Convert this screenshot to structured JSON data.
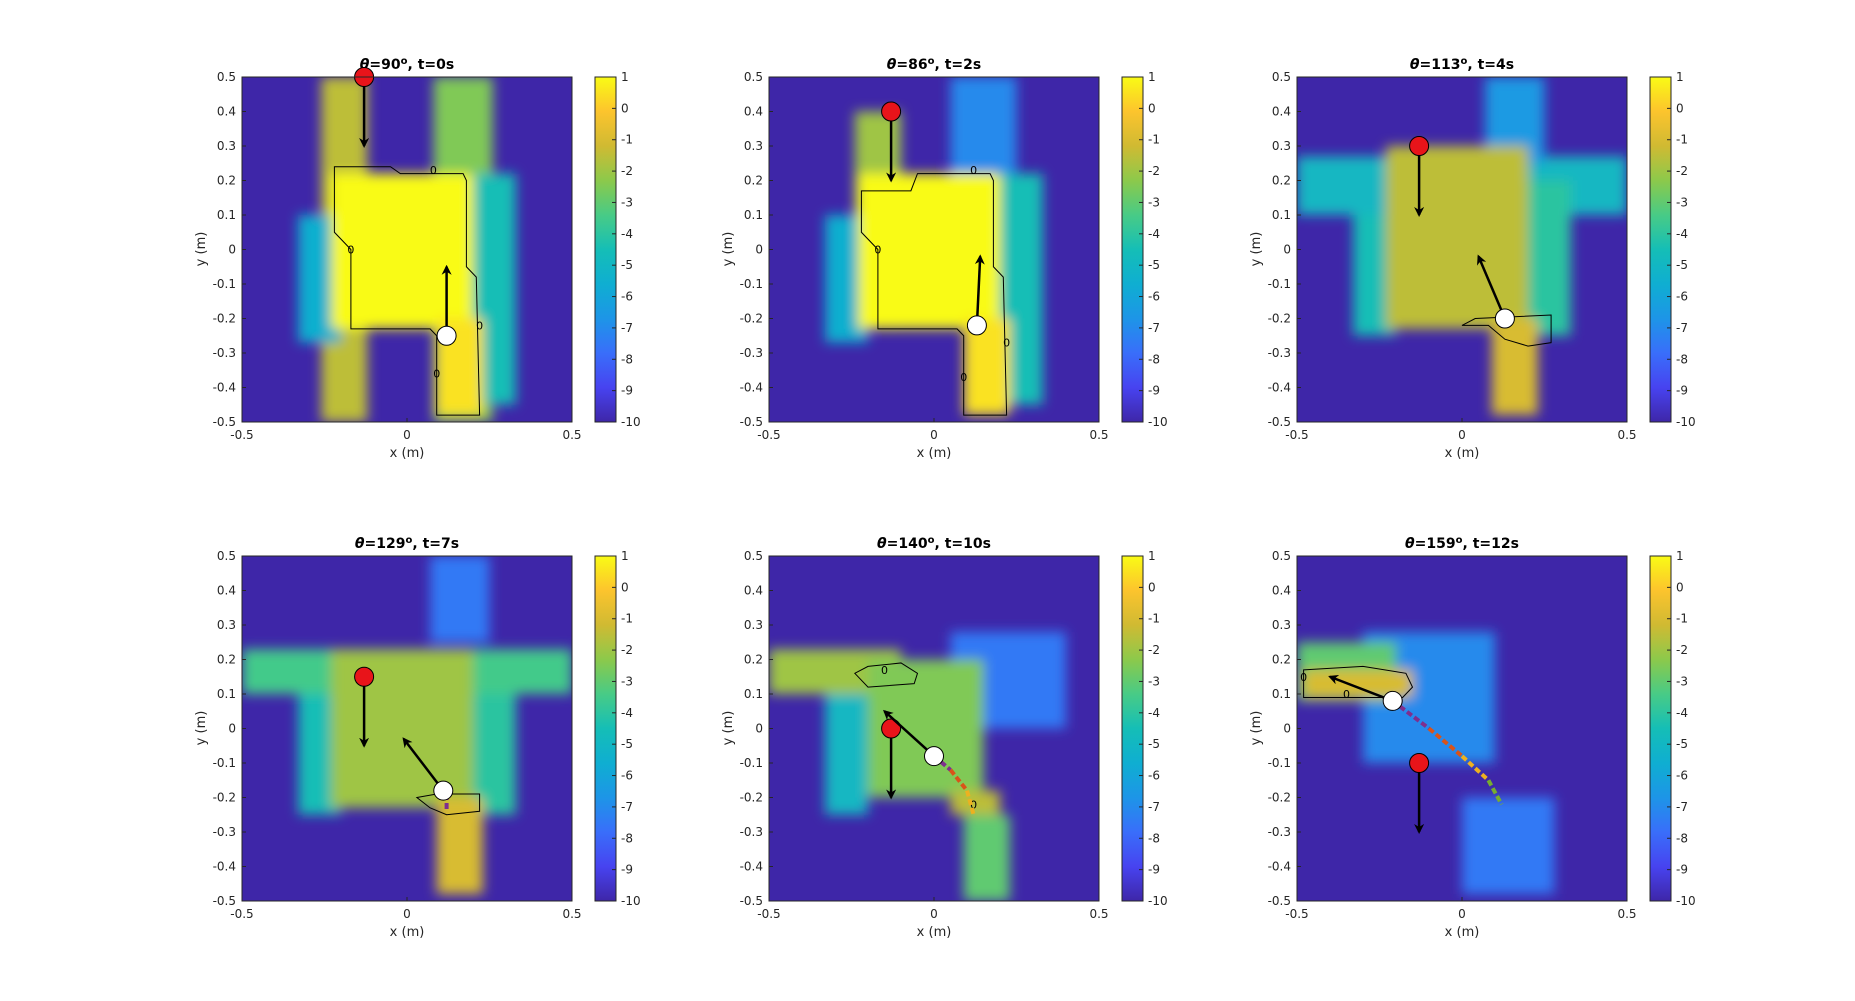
{
  "chart_data": [
    {
      "type": "heatmap",
      "title_parts": {
        "symbol": "θ",
        "value": "=90",
        "degree": "o",
        "suffix": ", t=0s"
      },
      "xlabel": "x (m)",
      "ylabel": "y (m)",
      "xlim": [
        -0.5,
        0.5
      ],
      "ylim": [
        -0.5,
        0.5
      ],
      "xticks": [
        "-0.5",
        "0",
        "0.5"
      ],
      "yticks": [
        "-0.5",
        "-0.4",
        "-0.3",
        "-0.2",
        "-0.1",
        "0",
        "0.1",
        "0.2",
        "0.3",
        "0.4",
        "0.5"
      ],
      "colorbar": {
        "range": [
          -10,
          1
        ],
        "ticks": [
          "1",
          "0",
          "-1",
          "-2",
          "-3",
          "-4",
          "-5",
          "-6",
          "-7",
          "-8",
          "-9",
          "-10"
        ]
      },
      "red_marker": {
        "x": -0.13,
        "y": 0.5,
        "arrow_to": [
          -0.13,
          0.3
        ]
      },
      "white_marker": {
        "x": 0.12,
        "y": -0.25,
        "arrow_to": [
          0.12,
          -0.05
        ]
      },
      "regions": [
        {
          "label": "left corridor",
          "x": [
            -0.26,
            -0.12
          ],
          "y": [
            -0.5,
            0.5
          ],
          "value": -1.5
        },
        {
          "label": "right corridor",
          "x": [
            0.08,
            0.26
          ],
          "y": [
            -0.5,
            0.5
          ],
          "value": -2.5
        },
        {
          "label": "left wing",
          "x": [
            -0.33,
            -0.2
          ],
          "y": [
            -0.27,
            0.1
          ],
          "value": -5.5
        },
        {
          "label": "right wing",
          "x": [
            0.2,
            0.33
          ],
          "y": [
            -0.45,
            0.22
          ],
          "value": -4.5
        },
        {
          "label": "core",
          "x": [
            -0.23,
            0.2
          ],
          "y": [
            -0.23,
            0.22
          ],
          "value": 1
        },
        {
          "label": "lower core",
          "x": [
            0.09,
            0.23
          ],
          "y": [
            -0.48,
            -0.2
          ],
          "value": 0.5
        }
      ],
      "contour_polygon": [
        [
          -0.22,
          0.24
        ],
        [
          -0.05,
          0.24
        ],
        [
          -0.02,
          0.22
        ],
        [
          0.17,
          0.22
        ],
        [
          0.18,
          0.2
        ],
        [
          0.18,
          -0.05
        ],
        [
          0.21,
          -0.08
        ],
        [
          0.22,
          -0.48
        ],
        [
          0.09,
          -0.48
        ],
        [
          0.09,
          -0.25
        ],
        [
          0.07,
          -0.23
        ],
        [
          -0.17,
          -0.23
        ],
        [
          -0.17,
          0.0
        ],
        [
          -0.22,
          0.05
        ]
      ],
      "contour_labels": [
        {
          "x": -0.17,
          "y": 0.0,
          "text": "0"
        },
        {
          "x": 0.08,
          "y": 0.23,
          "text": "0"
        },
        {
          "x": 0.22,
          "y": -0.22,
          "text": "0"
        },
        {
          "x": 0.09,
          "y": -0.36,
          "text": "0"
        }
      ],
      "path": []
    },
    {
      "type": "heatmap",
      "title_parts": {
        "symbol": "θ",
        "value": "=86",
        "degree": "o",
        "suffix": ", t=2s"
      },
      "xlabel": "x (m)",
      "ylabel": "y (m)",
      "xlim": [
        -0.5,
        0.5
      ],
      "ylim": [
        -0.5,
        0.5
      ],
      "xticks": [
        "-0.5",
        "0",
        "0.5"
      ],
      "yticks": [
        "-0.5",
        "-0.4",
        "-0.3",
        "-0.2",
        "-0.1",
        "0",
        "0.1",
        "0.2",
        "0.3",
        "0.4",
        "0.5"
      ],
      "colorbar": {
        "range": [
          -10,
          1
        ],
        "ticks": [
          "1",
          "0",
          "-1",
          "-2",
          "-3",
          "-4",
          "-5",
          "-6",
          "-7",
          "-8",
          "-9",
          "-10"
        ]
      },
      "red_marker": {
        "x": -0.13,
        "y": 0.4,
        "arrow_to": [
          -0.13,
          0.2
        ]
      },
      "white_marker": {
        "x": 0.13,
        "y": -0.22,
        "arrow_to": [
          0.14,
          -0.02
        ]
      },
      "regions": [
        {
          "label": "left corridor",
          "x": [
            -0.24,
            -0.1
          ],
          "y": [
            -0.23,
            0.4
          ],
          "value": -2
        },
        {
          "label": "upper right",
          "x": [
            0.05,
            0.25
          ],
          "y": [
            0.1,
            0.5
          ],
          "value": -7
        },
        {
          "label": "left wing",
          "x": [
            -0.33,
            -0.2
          ],
          "y": [
            -0.27,
            0.1
          ],
          "value": -5.5
        },
        {
          "label": "right wing",
          "x": [
            0.2,
            0.33
          ],
          "y": [
            -0.45,
            0.22
          ],
          "value": -4.5
        },
        {
          "label": "core",
          "x": [
            -0.23,
            0.2
          ],
          "y": [
            -0.23,
            0.22
          ],
          "value": 1
        },
        {
          "label": "lower core",
          "x": [
            0.09,
            0.23
          ],
          "y": [
            -0.48,
            -0.2
          ],
          "value": 0.5
        }
      ],
      "contour_polygon": [
        [
          -0.22,
          0.17
        ],
        [
          -0.07,
          0.17
        ],
        [
          -0.05,
          0.22
        ],
        [
          0.17,
          0.22
        ],
        [
          0.18,
          0.2
        ],
        [
          0.18,
          -0.05
        ],
        [
          0.21,
          -0.08
        ],
        [
          0.22,
          -0.48
        ],
        [
          0.09,
          -0.48
        ],
        [
          0.09,
          -0.25
        ],
        [
          0.07,
          -0.23
        ],
        [
          -0.17,
          -0.23
        ],
        [
          -0.17,
          0.0
        ],
        [
          -0.22,
          0.05
        ]
      ],
      "contour_labels": [
        {
          "x": -0.17,
          "y": 0.0,
          "text": "0"
        },
        {
          "x": 0.12,
          "y": 0.23,
          "text": "0"
        },
        {
          "x": 0.22,
          "y": -0.27,
          "text": "0"
        },
        {
          "x": 0.09,
          "y": -0.37,
          "text": "0"
        }
      ],
      "path": []
    },
    {
      "type": "heatmap",
      "title_parts": {
        "symbol": "θ",
        "value": "=113",
        "degree": "o",
        "suffix": ", t=4s"
      },
      "xlabel": "x (m)",
      "ylabel": "y (m)",
      "xlim": [
        -0.5,
        0.5
      ],
      "ylim": [
        -0.5,
        0.5
      ],
      "xticks": [
        "-0.5",
        "0",
        "0.5"
      ],
      "yticks": [
        "-0.5",
        "-0.4",
        "-0.3",
        "-0.2",
        "-0.1",
        "0",
        "0.1",
        "0.2",
        "0.3",
        "0.4",
        "0.5"
      ],
      "colorbar": {
        "range": [
          -10,
          1
        ],
        "ticks": [
          "1",
          "0",
          "-1",
          "-2",
          "-3",
          "-4",
          "-5",
          "-6",
          "-7",
          "-8",
          "-9",
          "-10"
        ]
      },
      "red_marker": {
        "x": -0.13,
        "y": 0.3,
        "arrow_to": [
          -0.13,
          0.1
        ]
      },
      "white_marker": {
        "x": 0.13,
        "y": -0.2,
        "arrow_to": [
          0.05,
          -0.02
        ]
      },
      "regions": [
        {
          "label": "horizontal band",
          "x": [
            -0.5,
            0.5
          ],
          "y": [
            0.1,
            0.27
          ],
          "value": -5
        },
        {
          "label": "upper right",
          "x": [
            0.07,
            0.25
          ],
          "y": [
            0.25,
            0.5
          ],
          "value": -6.5
        },
        {
          "label": "left wing",
          "x": [
            -0.33,
            -0.2
          ],
          "y": [
            -0.25,
            0.1
          ],
          "value": -4.5
        },
        {
          "label": "right wing",
          "x": [
            0.2,
            0.33
          ],
          "y": [
            -0.25,
            0.2
          ],
          "value": -4
        },
        {
          "label": "core",
          "x": [
            -0.23,
            0.2
          ],
          "y": [
            -0.23,
            0.3
          ],
          "value": -1.5
        },
        {
          "label": "lower core",
          "x": [
            0.09,
            0.23
          ],
          "y": [
            -0.48,
            -0.2
          ],
          "value": -1
        }
      ],
      "contour_polygon": [
        [
          0.0,
          -0.22
        ],
        [
          0.04,
          -0.2
        ],
        [
          0.27,
          -0.19
        ],
        [
          0.27,
          -0.27
        ],
        [
          0.2,
          -0.28
        ],
        [
          0.13,
          -0.26
        ],
        [
          0.08,
          -0.22
        ]
      ],
      "contour_labels": [],
      "path": []
    },
    {
      "type": "heatmap",
      "title_parts": {
        "symbol": "θ",
        "value": "=129",
        "degree": "o",
        "suffix": ", t=7s"
      },
      "xlabel": "x (m)",
      "ylabel": "y (m)",
      "xlim": [
        -0.5,
        0.5
      ],
      "ylim": [
        -0.5,
        0.5
      ],
      "xticks": [
        "-0.5",
        "0",
        "0.5"
      ],
      "yticks": [
        "-0.5",
        "-0.4",
        "-0.3",
        "-0.2",
        "-0.1",
        "0",
        "0.1",
        "0.2",
        "0.3",
        "0.4",
        "0.5"
      ],
      "colorbar": {
        "range": [
          -10,
          1
        ],
        "ticks": [
          "1",
          "0",
          "-1",
          "-2",
          "-3",
          "-4",
          "-5",
          "-6",
          "-7",
          "-8",
          "-9",
          "-10"
        ]
      },
      "red_marker": {
        "x": -0.13,
        "y": 0.15,
        "arrow_to": [
          -0.13,
          -0.05
        ]
      },
      "white_marker": {
        "x": 0.11,
        "y": -0.18,
        "arrow_to": [
          -0.01,
          -0.03
        ]
      },
      "regions": [
        {
          "label": "horizontal band",
          "x": [
            -0.5,
            0.5
          ],
          "y": [
            0.1,
            0.23
          ],
          "value": -3.5
        },
        {
          "label": "upper right",
          "x": [
            0.07,
            0.25
          ],
          "y": [
            0.25,
            0.5
          ],
          "value": -7.5
        },
        {
          "label": "left wing",
          "x": [
            -0.33,
            -0.2
          ],
          "y": [
            -0.25,
            0.1
          ],
          "value": -4.5
        },
        {
          "label": "right wing",
          "x": [
            0.2,
            0.33
          ],
          "y": [
            -0.25,
            0.1
          ],
          "value": -4
        },
        {
          "label": "core",
          "x": [
            -0.23,
            0.2
          ],
          "y": [
            -0.23,
            0.23
          ],
          "value": -2
        },
        {
          "label": "lower core",
          "x": [
            0.09,
            0.23
          ],
          "y": [
            -0.48,
            -0.2
          ],
          "value": -1
        }
      ],
      "contour_polygon": [
        [
          0.03,
          -0.2
        ],
        [
          0.09,
          -0.19
        ],
        [
          0.22,
          -0.19
        ],
        [
          0.22,
          -0.24
        ],
        [
          0.12,
          -0.25
        ],
        [
          0.07,
          -0.23
        ]
      ],
      "contour_labels": [],
      "path": [
        [
          0.12,
          -0.19
        ],
        [
          0.12,
          -0.24
        ]
      ]
    },
    {
      "type": "heatmap",
      "title_parts": {
        "symbol": "θ",
        "value": "=140",
        "degree": "o",
        "suffix": ", t=10s"
      },
      "xlabel": "x (m)",
      "ylabel": "y (m)",
      "xlim": [
        -0.5,
        0.5
      ],
      "ylim": [
        -0.5,
        0.5
      ],
      "xticks": [
        "-0.5",
        "0",
        "0.5"
      ],
      "yticks": [
        "-0.5",
        "-0.4",
        "-0.3",
        "-0.2",
        "-0.1",
        "0",
        "0.1",
        "0.2",
        "0.3",
        "0.4",
        "0.5"
      ],
      "colorbar": {
        "range": [
          -10,
          1
        ],
        "ticks": [
          "1",
          "0",
          "-1",
          "-2",
          "-3",
          "-4",
          "-5",
          "-6",
          "-7",
          "-8",
          "-9",
          "-10"
        ]
      },
      "red_marker": {
        "x": -0.13,
        "y": 0.0,
        "arrow_to": [
          -0.13,
          -0.2
        ]
      },
      "white_marker": {
        "x": 0.0,
        "y": -0.08,
        "arrow_to": [
          -0.15,
          0.05
        ]
      },
      "regions": [
        {
          "label": "left band",
          "x": [
            -0.5,
            -0.1
          ],
          "y": [
            0.1,
            0.23
          ],
          "value": -2
        },
        {
          "label": "diffuse right",
          "x": [
            0.05,
            0.4
          ],
          "y": [
            0.0,
            0.28
          ],
          "value": -7.5
        },
        {
          "label": "left wing",
          "x": [
            -0.33,
            -0.2
          ],
          "y": [
            -0.25,
            0.1
          ],
          "value": -5
        },
        {
          "label": "core",
          "x": [
            -0.2,
            0.15
          ],
          "y": [
            -0.2,
            0.2
          ],
          "value": -2.5
        },
        {
          "label": "lower block",
          "x": [
            0.05,
            0.2
          ],
          "y": [
            -0.25,
            -0.18
          ],
          "value": -1.5
        },
        {
          "label": "lower corridor",
          "x": [
            0.09,
            0.23
          ],
          "y": [
            -0.5,
            -0.25
          ],
          "value": -3
        }
      ],
      "contour_polygon": [
        [
          -0.24,
          0.16
        ],
        [
          -0.2,
          0.18
        ],
        [
          -0.1,
          0.19
        ],
        [
          -0.05,
          0.16
        ],
        [
          -0.06,
          0.13
        ],
        [
          -0.2,
          0.12
        ]
      ],
      "contour_labels": [
        {
          "x": -0.15,
          "y": 0.17,
          "text": "0"
        },
        {
          "x": 0.12,
          "y": -0.22,
          "text": "0"
        }
      ],
      "path": [
        [
          0.0,
          -0.08
        ],
        [
          0.05,
          -0.12
        ],
        [
          0.1,
          -0.18
        ],
        [
          0.12,
          -0.25
        ]
      ]
    },
    {
      "type": "heatmap",
      "title_parts": {
        "symbol": "θ",
        "value": "=159",
        "degree": "o",
        "suffix": ", t=12s"
      },
      "xlabel": "x (m)",
      "ylabel": "y (m)",
      "xlim": [
        -0.5,
        0.5
      ],
      "ylim": [
        -0.5,
        0.5
      ],
      "xticks": [
        "-0.5",
        "0",
        "0.5"
      ],
      "yticks": [
        "-0.5",
        "-0.4",
        "-0.3",
        "-0.2",
        "-0.1",
        "0",
        "0.1",
        "0.2",
        "0.3",
        "0.4",
        "0.5"
      ],
      "colorbar": {
        "range": [
          -10,
          1
        ],
        "ticks": [
          "1",
          "0",
          "-1",
          "-2",
          "-3",
          "-4",
          "-5",
          "-6",
          "-7",
          "-8",
          "-9",
          "-10"
        ]
      },
      "red_marker": {
        "x": -0.13,
        "y": -0.1,
        "arrow_to": [
          -0.13,
          -0.3
        ]
      },
      "white_marker": {
        "x": -0.21,
        "y": 0.08,
        "arrow_to": [
          -0.4,
          0.15
        ]
      },
      "regions": [
        {
          "label": "diffuse upper",
          "x": [
            -0.3,
            0.1
          ],
          "y": [
            -0.1,
            0.28
          ],
          "value": -7
        },
        {
          "label": "lower diffuse",
          "x": [
            0.0,
            0.28
          ],
          "y": [
            -0.48,
            -0.2
          ],
          "value": -7.5
        },
        {
          "label": "left band",
          "x": [
            -0.5,
            -0.2
          ],
          "y": [
            0.08,
            0.25
          ],
          "value": -3
        },
        {
          "label": "upper-left core",
          "x": [
            -0.48,
            -0.15
          ],
          "y": [
            0.09,
            0.17
          ],
          "value": -1
        }
      ],
      "contour_polygon": [
        [
          -0.48,
          0.17
        ],
        [
          -0.3,
          0.18
        ],
        [
          -0.17,
          0.16
        ],
        [
          -0.15,
          0.12
        ],
        [
          -0.18,
          0.09
        ],
        [
          -0.48,
          0.09
        ]
      ],
      "contour_labels": [
        {
          "x": -0.48,
          "y": 0.15,
          "text": "0"
        },
        {
          "x": -0.35,
          "y": 0.1,
          "text": "0"
        }
      ],
      "path": [
        [
          -0.21,
          0.08
        ],
        [
          -0.1,
          0.0
        ],
        [
          0.0,
          -0.08
        ],
        [
          0.08,
          -0.15
        ],
        [
          0.12,
          -0.22
        ]
      ]
    }
  ],
  "colors": {
    "background": "#ffffff",
    "red_marker": "#e8141a",
    "white_marker": "#ffffff",
    "arrow": "#000000",
    "contour": "#000000"
  }
}
